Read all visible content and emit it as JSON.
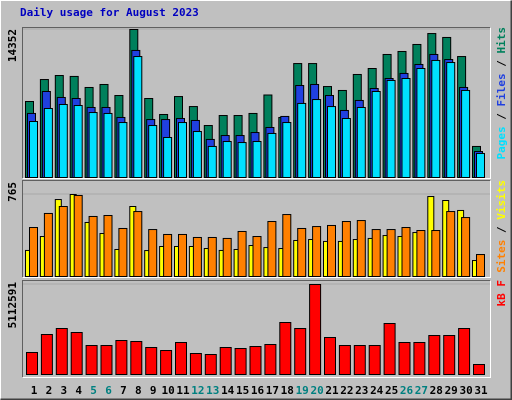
{
  "chart_data": [
    {
      "type": "bar",
      "title": "Daily usage for August 2023",
      "ylim": [
        0,
        14352
      ],
      "yticks": [
        14352
      ],
      "legend_separator": " / ",
      "series": [
        {
          "name": "Hits",
          "color": "#00805c",
          "values": [
            7370,
            9500,
            9890,
            9800,
            8730,
            9020,
            7950,
            14352,
            7660,
            6110,
            7850,
            6880,
            5040,
            6010,
            6010,
            6210,
            8000,
            5820,
            11050,
            11050,
            8820,
            8440,
            9990,
            10570,
            11930,
            12220,
            12900,
            13960,
            13580,
            11730,
            3010
          ]
        },
        {
          "name": "Files",
          "color": "#2040e0",
          "values": [
            6210,
            8340,
            7760,
            7660,
            6790,
            6790,
            5820,
            12320,
            5620,
            5620,
            5720,
            5530,
            3690,
            4070,
            4070,
            4360,
            4850,
            5920,
            8920,
            9020,
            7950,
            6500,
            7470,
            8630,
            9600,
            10090,
            10960,
            11930,
            11440,
            8730,
            2520
          ]
        },
        {
          "name": "Pages",
          "color": "#00e0ff",
          "values": [
            5430,
            6690,
            7080,
            6980,
            6300,
            6210,
            5330,
            11730,
            5040,
            3880,
            5330,
            4460,
            3010,
            3490,
            3390,
            3490,
            4270,
            5330,
            7180,
            7560,
            6880,
            5720,
            6790,
            8340,
            9410,
            9600,
            10570,
            11350,
            11150,
            8440,
            2330
          ]
        }
      ]
    },
    {
      "type": "bar",
      "ylim": [
        0,
        765
      ],
      "yticks": [
        765
      ],
      "legend_separator": " / ",
      "series": [
        {
          "name": "Visits",
          "color": "#ffff00",
          "values": [
            243,
            373,
            718,
            765,
            504,
            401,
            252,
            653,
            242,
            280,
            280,
            280,
            261,
            243,
            252,
            289,
            270,
            261,
            336,
            345,
            327,
            327,
            345,
            355,
            382,
            373,
            410,
            746,
            709,
            616,
            149
          ]
        },
        {
          "name": "Sites",
          "color": "#ff8000",
          "values": [
            457,
            588,
            653,
            756,
            560,
            569,
            448,
            606,
            438,
            392,
            392,
            364,
            364,
            355,
            420,
            373,
            513,
            578,
            448,
            466,
            476,
            513,
            522,
            438,
            438,
            457,
            429,
            429,
            606,
            550,
            205
          ]
        }
      ]
    },
    {
      "type": "bar",
      "ylim": [
        0,
        5112591
      ],
      "yticks": [
        5112591
      ],
      "categories": [
        "1",
        "2",
        "3",
        "4",
        "5",
        "6",
        "7",
        "8",
        "9",
        "10",
        "11",
        "12",
        "13",
        "14",
        "15",
        "16",
        "17",
        "18",
        "19",
        "20",
        "21",
        "22",
        "23",
        "24",
        "25",
        "26",
        "27",
        "28",
        "29",
        "30",
        "31"
      ],
      "weekend_indices": [
        4,
        5,
        11,
        12,
        18,
        19,
        25,
        26
      ],
      "weekend_color": "#008080",
      "series": [
        {
          "name": "kB F",
          "color": "#ff0000",
          "values": [
            1250000,
            2272000,
            2613000,
            2386000,
            1647000,
            1647000,
            1931000,
            1875000,
            1534000,
            1363000,
            1818000,
            1193000,
            1136000,
            1534000,
            1477000,
            1590000,
            1704000,
            2954000,
            2613000,
            5112591,
            2102000,
            1647000,
            1647000,
            1647000,
            2897000,
            1818000,
            1818000,
            2215000,
            2215000,
            2613000,
            568000
          ]
        }
      ]
    }
  ]
}
